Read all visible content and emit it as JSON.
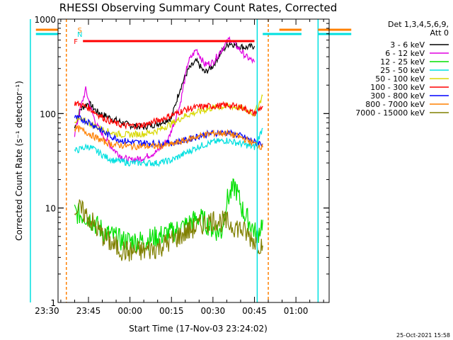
{
  "chart_data": {
    "type": "line",
    "title": "RHESSI Observing Summary Count Rates, Corrected",
    "xlabel": "Start Time (17-Nov-03 23:24:02)",
    "ylabel": "Corrected Count Rate (s⁻¹ detector⁻¹)",
    "yscale": "log",
    "ylim": [
      1,
      1000
    ],
    "xlim_minutes": [
      -26,
      72
    ],
    "x_unit": "minutes after 00:00",
    "y_ticks": [
      1,
      10,
      100,
      1000
    ],
    "y_tick_labels": [
      "1",
      "10",
      "100",
      "1000"
    ],
    "x_ticks": [
      -30,
      -15,
      0,
      15,
      30,
      45,
      60
    ],
    "x_tick_labels": [
      "23:30",
      "23:45",
      "00:00",
      "00:15",
      "00:30",
      "00:45",
      "01:00"
    ],
    "grid": false,
    "legend_position": "right",
    "legend_header": [
      "Det 1,3,4,5,6,9,",
      "Att 0"
    ],
    "series": [
      {
        "name": "3 - 6 keV",
        "color": "#000000",
        "x": [
          -20,
          -18,
          -15,
          -12,
          -9,
          -5,
          0,
          5,
          10,
          15,
          18,
          21,
          24,
          27,
          30,
          33,
          36,
          39,
          42,
          45
        ],
        "y": [
          70,
          110,
          130,
          105,
          95,
          85,
          75,
          72,
          78,
          90,
          180,
          290,
          360,
          270,
          320,
          450,
          560,
          520,
          500,
          520
        ]
      },
      {
        "name": "6 - 12 keV",
        "color": "#e000e0",
        "x": [
          -20,
          -18,
          -16,
          -14,
          -12,
          -9,
          -6,
          -3,
          0,
          5,
          10,
          14,
          18,
          21,
          24,
          27,
          30,
          33,
          36,
          39,
          42,
          45
        ],
        "y": [
          60,
          110,
          180,
          110,
          75,
          55,
          42,
          35,
          32,
          34,
          40,
          55,
          120,
          350,
          480,
          330,
          350,
          470,
          620,
          500,
          400,
          350
        ]
      },
      {
        "name": "12 - 25 keV",
        "color": "#00e000",
        "x": [
          -20,
          -18,
          -15,
          -12,
          -9,
          -6,
          -3,
          0,
          5,
          10,
          15,
          20,
          25,
          30,
          33,
          35,
          38,
          41,
          44,
          46,
          48
        ],
        "y": [
          9,
          8.5,
          8,
          6.5,
          5.5,
          5,
          4.5,
          4.5,
          4.5,
          5,
          5.5,
          6.5,
          8,
          6,
          5.5,
          12,
          17,
          9,
          6.5,
          5,
          7.5
        ]
      },
      {
        "name": "25 - 50 keV",
        "color": "#00e0e0",
        "x": [
          -20,
          -18,
          -15,
          -12,
          -9,
          -6,
          -3,
          0,
          5,
          10,
          15,
          20,
          25,
          30,
          35,
          40,
          45,
          48
        ],
        "y": [
          40,
          42,
          45,
          40,
          35,
          32,
          31,
          30,
          30,
          30,
          32,
          38,
          45,
          50,
          52,
          48,
          44,
          70
        ]
      },
      {
        "name": "50 - 100 keV",
        "color": "#d8d800",
        "x": [
          -20,
          -18,
          -15,
          -12,
          -9,
          -6,
          -3,
          0,
          5,
          10,
          15,
          20,
          25,
          30,
          35,
          40,
          45,
          48
        ],
        "y": [
          85,
          85,
          80,
          72,
          66,
          62,
          60,
          60,
          61,
          66,
          78,
          95,
          105,
          115,
          120,
          115,
          100,
          155
        ]
      },
      {
        "name": "100 - 300 keV",
        "color": "#ff0000",
        "x": [
          -20,
          -18,
          -15,
          -12,
          -9,
          -6,
          -3,
          0,
          5,
          10,
          15,
          20,
          25,
          30,
          35,
          40,
          45,
          48
        ],
        "y": [
          130,
          125,
          115,
          100,
          88,
          80,
          75,
          74,
          76,
          84,
          96,
          110,
          118,
          120,
          122,
          118,
          100,
          120
        ]
      },
      {
        "name": "300 - 800 keV",
        "color": "#0000ff",
        "x": [
          -20,
          -18,
          -15,
          -12,
          -9,
          -6,
          -3,
          0,
          5,
          10,
          15,
          20,
          25,
          30,
          35,
          40,
          45,
          48
        ],
        "y": [
          90,
          88,
          82,
          72,
          62,
          56,
          52,
          50,
          49,
          48,
          49,
          52,
          58,
          62,
          63,
          58,
          50,
          48
        ]
      },
      {
        "name": "800 - 7000 keV",
        "color": "#ff8000",
        "x": [
          -20,
          -18,
          -15,
          -12,
          -9,
          -6,
          -3,
          0,
          5,
          10,
          15,
          20,
          25,
          30,
          35,
          40,
          45,
          48
        ],
        "y": [
          70,
          68,
          62,
          55,
          50,
          47,
          46,
          45,
          45,
          45,
          47,
          52,
          58,
          62,
          62,
          56,
          48,
          44
        ]
      },
      {
        "name": "7000 - 15000 keV",
        "color": "#808000",
        "x": [
          -20,
          -18,
          -15,
          -12,
          -9,
          -6,
          -3,
          0,
          5,
          10,
          15,
          20,
          25,
          30,
          35,
          40,
          45,
          48
        ],
        "y": [
          10,
          9.5,
          8,
          6,
          4.8,
          4,
          3.6,
          3.4,
          3.5,
          3.8,
          4.5,
          5.5,
          6.5,
          7.5,
          7,
          6,
          4.5,
          4
        ]
      }
    ],
    "flag_bars": [
      {
        "label": "S",
        "color": "#ff8000",
        "segments": [
          [
            -34,
            -26
          ],
          [
            54,
            62
          ],
          [
            68,
            80
          ]
        ]
      },
      {
        "label": "N",
        "color": "#00e0e0",
        "segments": [
          [
            -34,
            -26
          ],
          [
            48,
            62
          ],
          [
            68,
            80
          ]
        ]
      },
      {
        "label": "F",
        "color": "#ff0000",
        "segments": [
          [
            -17,
            45
          ]
        ]
      }
    ],
    "vertical_markers": [
      {
        "color": "#00e0e0",
        "x": -36
      },
      {
        "color": "#ff8000",
        "x": -23
      },
      {
        "color": "#00e0e0",
        "x": 46
      },
      {
        "color": "#ff8000",
        "x": 50
      },
      {
        "color": "#00e0e0",
        "x": 68
      }
    ],
    "footer_date": "25-Oct-2021 15:58"
  }
}
